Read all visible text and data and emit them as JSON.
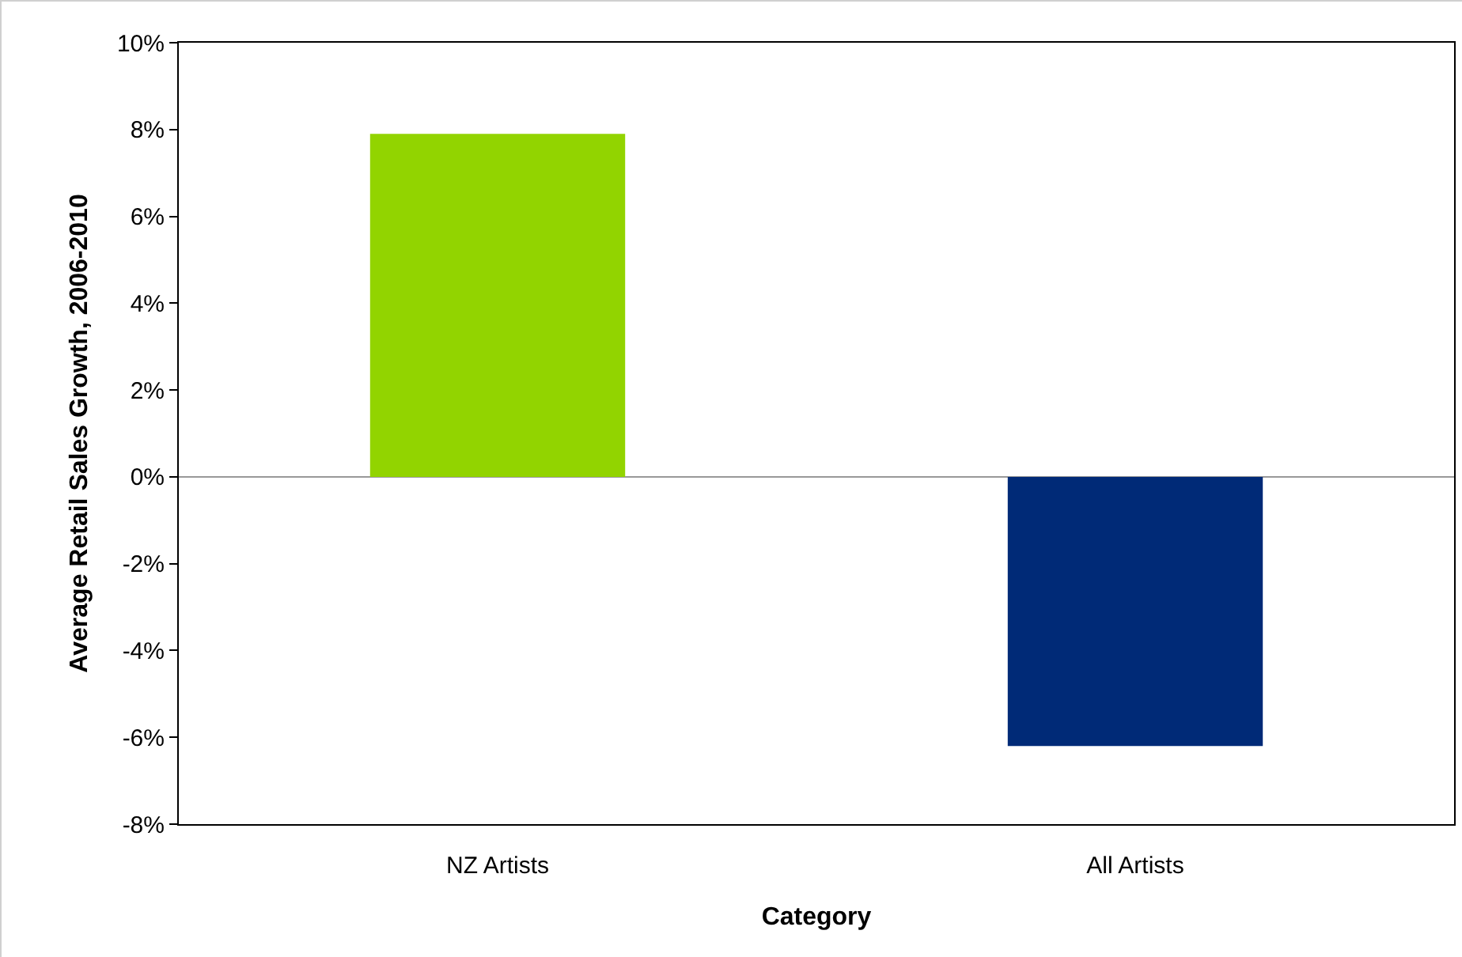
{
  "chart_data": {
    "type": "bar",
    "xlabel": "Category",
    "ylabel": "Average Retail Sales Growth, 2006-2010",
    "categories": [
      "NZ Artists",
      "All Artists"
    ],
    "values": [
      7.9,
      -6.2
    ],
    "colors": [
      "#92d400",
      "#002a77"
    ],
    "ylim": [
      -8,
      10
    ],
    "yticks": [
      {
        "value": -8,
        "label": "-8%"
      },
      {
        "value": -6,
        "label": "-6%"
      },
      {
        "value": -4,
        "label": "-4%"
      },
      {
        "value": -2,
        "label": "-2%"
      },
      {
        "value": 0,
        "label": "0%"
      },
      {
        "value": 2,
        "label": "2%"
      },
      {
        "value": 4,
        "label": "4%"
      },
      {
        "value": 6,
        "label": "6%"
      },
      {
        "value": 8,
        "label": "8%"
      },
      {
        "value": 10,
        "label": "10%"
      }
    ],
    "ref_lines": [
      {
        "axis": "y",
        "value": 0,
        "color": "#999999"
      }
    ],
    "grid": false
  }
}
